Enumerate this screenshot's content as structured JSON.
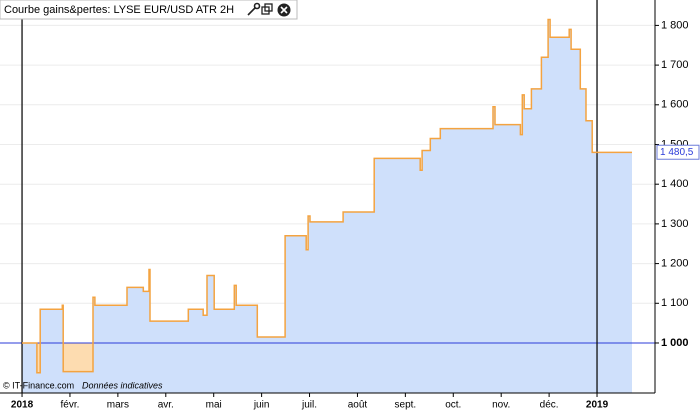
{
  "chart_data": {
    "type": "line",
    "title": "Courbe gains&pertes: LYSE EUR/USD ATR 2H",
    "credit": "© IT-Finance.com",
    "note": "Données indicatives",
    "x": [
      0,
      0.31,
      0.31,
      0.38,
      0.38,
      0.84,
      0.84,
      0.86,
      0.86,
      1.48,
      1.48,
      1.52,
      1.52,
      2.19,
      2.19,
      2.53,
      2.53,
      2.65,
      2.65,
      2.67,
      2.67,
      3.47,
      3.47,
      3.78,
      3.78,
      3.86,
      3.86,
      4.01,
      4.01,
      4.43,
      4.43,
      4.47,
      4.47,
      4.91,
      4.91,
      5.49,
      5.49,
      5.93,
      5.93,
      5.97,
      5.97,
      6.01,
      6.01,
      6.7,
      6.7,
      7.35,
      7.35,
      8.31,
      8.31,
      8.35,
      8.35,
      8.52,
      8.52,
      8.73,
      8.73,
      9.83,
      9.83,
      9.87,
      9.87,
      10.4,
      10.4,
      10.44,
      10.44,
      10.48,
      10.48,
      10.63,
      10.63,
      10.84,
      10.84,
      10.98,
      10.98,
      11.02,
      11.02,
      11.42,
      11.42,
      11.46,
      11.46,
      11.65,
      11.65,
      11.77,
      11.77,
      11.9,
      11.9,
      12.73
    ],
    "values": [
      1000,
      1000,
      925,
      925,
      1085,
      1085,
      1095,
      1095,
      928,
      928,
      1115,
      1115,
      1095,
      1095,
      1140,
      1140,
      1130,
      1130,
      1185,
      1185,
      1055,
      1055,
      1085,
      1085,
      1070,
      1070,
      1170,
      1170,
      1085,
      1085,
      1145,
      1145,
      1095,
      1095,
      1015,
      1015,
      1270,
      1270,
      1235,
      1235,
      1320,
      1320,
      1305,
      1305,
      1330,
      1330,
      1465,
      1465,
      1435,
      1435,
      1485,
      1485,
      1515,
      1515,
      1540,
      1540,
      1595,
      1595,
      1550,
      1550,
      1525,
      1525,
      1625,
      1625,
      1590,
      1590,
      1640,
      1640,
      1720,
      1720,
      1815,
      1815,
      1770,
      1770,
      1790,
      1790,
      1740,
      1740,
      1640,
      1640,
      1560,
      1560,
      1480,
      1480
    ],
    "color": "#f4a340",
    "area_color": "#cfe0fb",
    "negative_color": "#fddcb0",
    "baseline": 1000,
    "baseline_color": "#2b3bd9",
    "last_value": {
      "value": 1480.5,
      "label": "1 480,5"
    },
    "xlim": [
      -0.46,
      13.21
    ],
    "xticks": [
      {
        "value": 0,
        "label": "2018",
        "major": true
      },
      {
        "value": 1,
        "label": "févr."
      },
      {
        "value": 2,
        "label": "mars"
      },
      {
        "value": 3,
        "label": "avr."
      },
      {
        "value": 4,
        "label": "mai"
      },
      {
        "value": 5,
        "label": "juin"
      },
      {
        "value": 6,
        "label": "juil."
      },
      {
        "value": 7,
        "label": "août"
      },
      {
        "value": 8,
        "label": "sept."
      },
      {
        "value": 9,
        "label": "oct."
      },
      {
        "value": 10,
        "label": "nov."
      },
      {
        "value": 11,
        "label": "déc."
      },
      {
        "value": 12,
        "label": "2019",
        "major": true
      }
    ],
    "ylim": [
      874,
      1864
    ],
    "yticks": [
      {
        "value": 1000,
        "label": "1 000"
      },
      {
        "value": 1100,
        "label": "1 100"
      },
      {
        "value": 1200,
        "label": "1 200"
      },
      {
        "value": 1300,
        "label": "1 300"
      },
      {
        "value": 1400,
        "label": "1 400"
      },
      {
        "value": 1500,
        "label": "1 500"
      },
      {
        "value": 1600,
        "label": "1 600"
      },
      {
        "value": 1700,
        "label": "1 700"
      },
      {
        "value": 1800,
        "label": "1 800"
      }
    ],
    "grid": true
  }
}
